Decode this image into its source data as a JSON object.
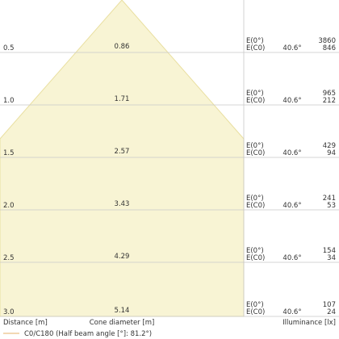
{
  "chart_data": {
    "type": "cone-diagram",
    "colors": {
      "cone_fill": "#f8f4d4",
      "cone_stroke": "#e9dfa0",
      "grid": "#c8c8c8",
      "text": "#333333",
      "legend_line": "#e6b06a"
    },
    "half_beam_angle_deg": 81.2,
    "rows": [
      {
        "distance": "0.5",
        "cone_diameter": "0.86",
        "e_label": "E(0°)",
        "ec_label": "E(C0)",
        "angle": "40.6°",
        "e0": "3860",
        "ec0": "846"
      },
      {
        "distance": "1.0",
        "cone_diameter": "1.71",
        "e_label": "E(0°)",
        "ec_label": "E(C0)",
        "angle": "40.6°",
        "e0": "965",
        "ec0": "212"
      },
      {
        "distance": "1.5",
        "cone_diameter": "2.57",
        "e_label": "E(0°)",
        "ec_label": "E(C0)",
        "angle": "40.6°",
        "e0": "429",
        "ec0": "94"
      },
      {
        "distance": "2.0",
        "cone_diameter": "3.43",
        "e_label": "E(0°)",
        "ec_label": "E(C0)",
        "angle": "40.6°",
        "e0": "241",
        "ec0": "53"
      },
      {
        "distance": "2.5",
        "cone_diameter": "4.29",
        "e_label": "E(0°)",
        "ec_label": "E(C0)",
        "angle": "40.6°",
        "e0": "154",
        "ec0": "34"
      },
      {
        "distance": "3.0",
        "cone_diameter": "5.14",
        "e_label": "E(0°)",
        "ec_label": "E(C0)",
        "angle": "40.6°",
        "e0": "107",
        "ec0": "24"
      }
    ],
    "footer": {
      "distance_label": "Distance [m]",
      "diameter_label": "Cone diameter [m]",
      "illuminance_label": "Illuminance [lx]"
    },
    "legend": {
      "label": "C0/C180 (Half beam angle [°]: 81.2°)"
    }
  }
}
